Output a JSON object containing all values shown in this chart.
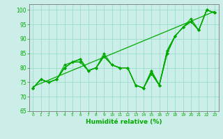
{
  "xlabel": "Humidité relative (%)",
  "bg_color": "#cceee8",
  "grid_color": "#99ddcc",
  "line_color": "#00aa00",
  "xlim": [
    -0.5,
    23.5
  ],
  "ylim": [
    65,
    102
  ],
  "yticks": [
    65,
    70,
    75,
    80,
    85,
    90,
    95,
    100
  ],
  "xticks": [
    0,
    1,
    2,
    3,
    4,
    5,
    6,
    7,
    8,
    9,
    10,
    11,
    12,
    13,
    14,
    15,
    16,
    17,
    18,
    19,
    20,
    21,
    22,
    23
  ],
  "lines": [
    [
      73,
      76,
      75,
      76,
      80,
      82,
      82,
      79,
      80,
      85,
      81,
      80,
      80,
      74,
      73,
      79,
      74,
      86,
      91,
      94,
      97,
      93,
      100,
      99
    ],
    [
      73,
      76,
      75,
      76,
      81,
      82,
      83,
      79,
      80,
      84,
      81,
      80,
      80,
      74,
      73,
      79,
      74,
      86,
      91,
      94,
      96,
      93,
      100,
      99
    ],
    [
      73,
      76,
      75,
      76,
      80,
      82,
      82,
      79,
      80,
      84,
      81,
      80,
      80,
      74,
      73,
      78,
      74,
      86,
      91,
      94,
      96,
      93,
      100,
      99
    ],
    [
      73,
      76,
      75,
      76,
      80,
      82,
      83,
      79,
      80,
      84,
      81,
      80,
      80,
      74,
      73,
      78,
      74,
      85,
      91,
      94,
      96,
      93,
      100,
      99
    ],
    [
      73,
      76,
      75,
      76,
      80,
      82,
      83,
      79,
      80,
      84,
      81,
      80,
      80,
      74,
      73,
      78,
      74,
      85,
      91,
      94,
      96,
      93,
      100,
      99
    ]
  ],
  "trend_line": [
    73.5,
    99.5
  ],
  "trend_x": [
    0,
    23
  ]
}
